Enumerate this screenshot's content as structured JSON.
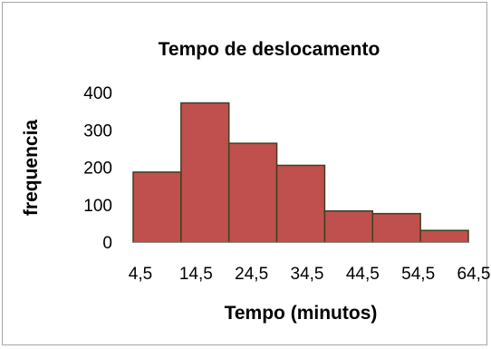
{
  "chart_data": {
    "type": "bar",
    "title": "Tempo de deslocamento",
    "xlabel": "Tempo (minutos)",
    "ylabel": "frequencia",
    "categories": [
      "4,5",
      "14,5",
      "24,5",
      "34,5",
      "44,5",
      "54,5",
      "64,5"
    ],
    "values": [
      187,
      372,
      264,
      205,
      83,
      76,
      31
    ],
    "ylim": [
      0,
      400
    ],
    "yticks": [
      0,
      100,
      200,
      300,
      400
    ],
    "grid": false,
    "legend": "none",
    "bar_color": "#c0504d",
    "bar_edge_color": "#3f3f1f"
  }
}
